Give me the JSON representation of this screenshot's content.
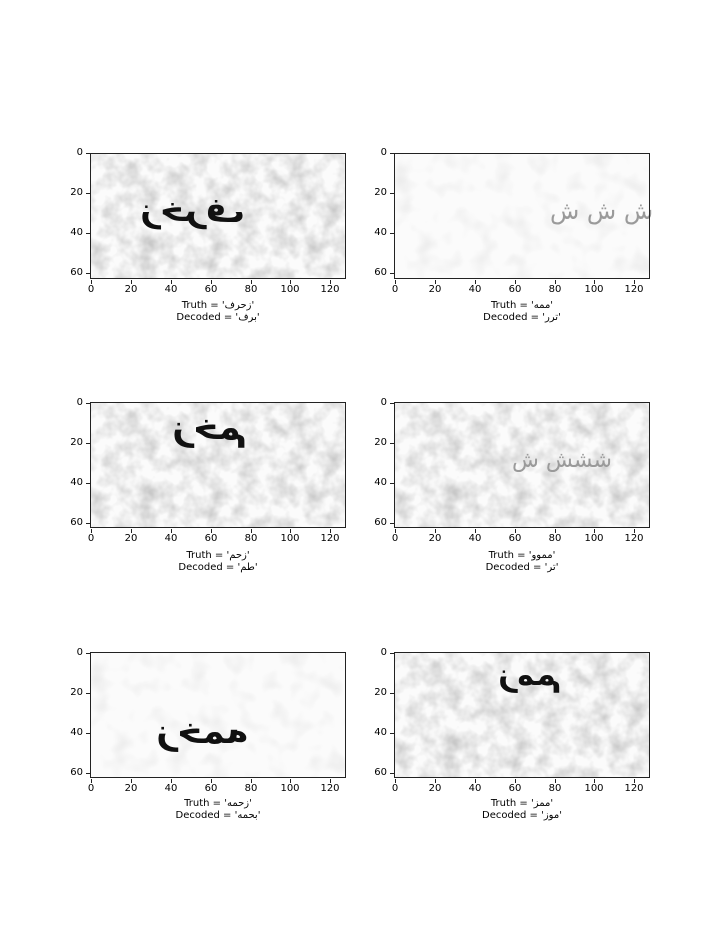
{
  "axes": {
    "x_ticks": [
      "0",
      "20",
      "40",
      "60",
      "80",
      "100",
      "120"
    ],
    "y_ticks": [
      "0",
      "20",
      "40",
      "60"
    ]
  },
  "panels": [
    {
      "glyph_text": "زخرف",
      "truth_label": "Truth = 'زحرف'",
      "decoded_label": "Decoded = 'برف'"
    },
    {
      "glyph_text": "ش ش ش",
      "truth_label": "Truth = 'ممه'",
      "decoded_label": "Decoded = 'ترر'"
    },
    {
      "glyph_text": "زخم",
      "truth_label": "Truth = 'زحم'",
      "decoded_label": "Decoded = 'طم'"
    },
    {
      "glyph_text": "ششش ش",
      "truth_label": "Truth = 'مموو'",
      "decoded_label": "Decoded = 'تر'"
    },
    {
      "glyph_text": "زخمه",
      "truth_label": "Truth = 'زحمه'",
      "decoded_label": "Decoded = 'بحمه'"
    },
    {
      "glyph_text": "زمم",
      "truth_label": "Truth = 'ممز'",
      "decoded_label": "Decoded = 'موز'"
    }
  ]
}
